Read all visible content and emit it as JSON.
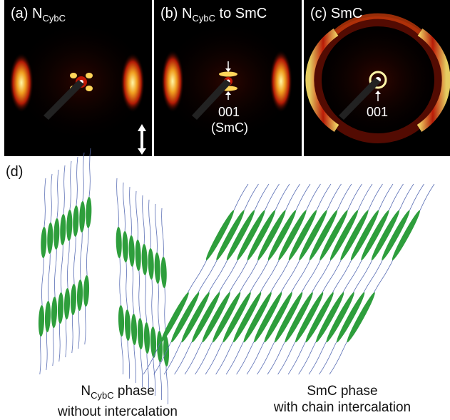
{
  "panels": {
    "a": {
      "label": "(a) N",
      "sub": "CybC"
    },
    "b": {
      "label": "(b) N",
      "sub": "CybC",
      "suffix": " to SmC",
      "annotation_line1": "001",
      "annotation_line2": "(SmC)"
    },
    "c": {
      "label": "(c) SmC",
      "annotation": "001"
    }
  },
  "panel_d_label": "(d)",
  "captions": {
    "left": {
      "main": "N",
      "sub": "CybC",
      "rest": " phase",
      "line2": "without intercalation"
    },
    "right": {
      "line1": "SmC phase",
      "line2": "with chain intercalation"
    }
  },
  "colors": {
    "mesogen": "#2e9e3c",
    "chain": "#5b6fb5",
    "diffraction_hot": "#ffe36b",
    "diffraction_mid": "#c81e08"
  }
}
